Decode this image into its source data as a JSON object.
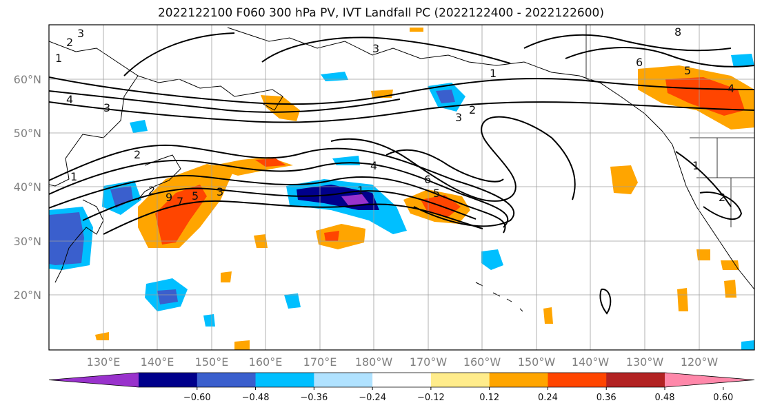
{
  "title": "2022122100 F060 300 hPa PV, IVT Landfall PC (2022122400 - 2022122600)",
  "map": {
    "lat_labels": [
      "60°N",
      "50°N",
      "40°N",
      "30°N",
      "20°N"
    ],
    "lon_labels": [
      "130°E",
      "140°E",
      "150°E",
      "160°E",
      "170°E",
      "180°W",
      "170°W",
      "160°W",
      "150°W",
      "140°W",
      "130°W",
      "120°W"
    ],
    "contour_labels": [
      "3",
      "2",
      "1",
      "4",
      "3",
      "3",
      "1",
      "2",
      "3",
      "8",
      "6",
      "5",
      "4",
      "2",
      "1",
      "2",
      "4",
      "6",
      "5",
      "1",
      "9",
      "7",
      "5",
      "3",
      "1",
      "2"
    ],
    "colors": {
      "land_outline": "#000000",
      "grid": "#9e9e9e",
      "contour": "#000000"
    }
  },
  "colorbar": {
    "ticks": [
      "−0.60",
      "−0.48",
      "−0.36",
      "−0.24",
      "−0.12",
      "0.12",
      "0.24",
      "0.36",
      "0.48",
      "0.60"
    ],
    "colors": [
      "#9932cc",
      "#00008b",
      "#3a5fcd",
      "#00bfff",
      "#b0e2ff",
      "#ffffff",
      "#ffec8b",
      "#ffa500",
      "#ff4500",
      "#b22222",
      "#ff88aa"
    ]
  }
}
